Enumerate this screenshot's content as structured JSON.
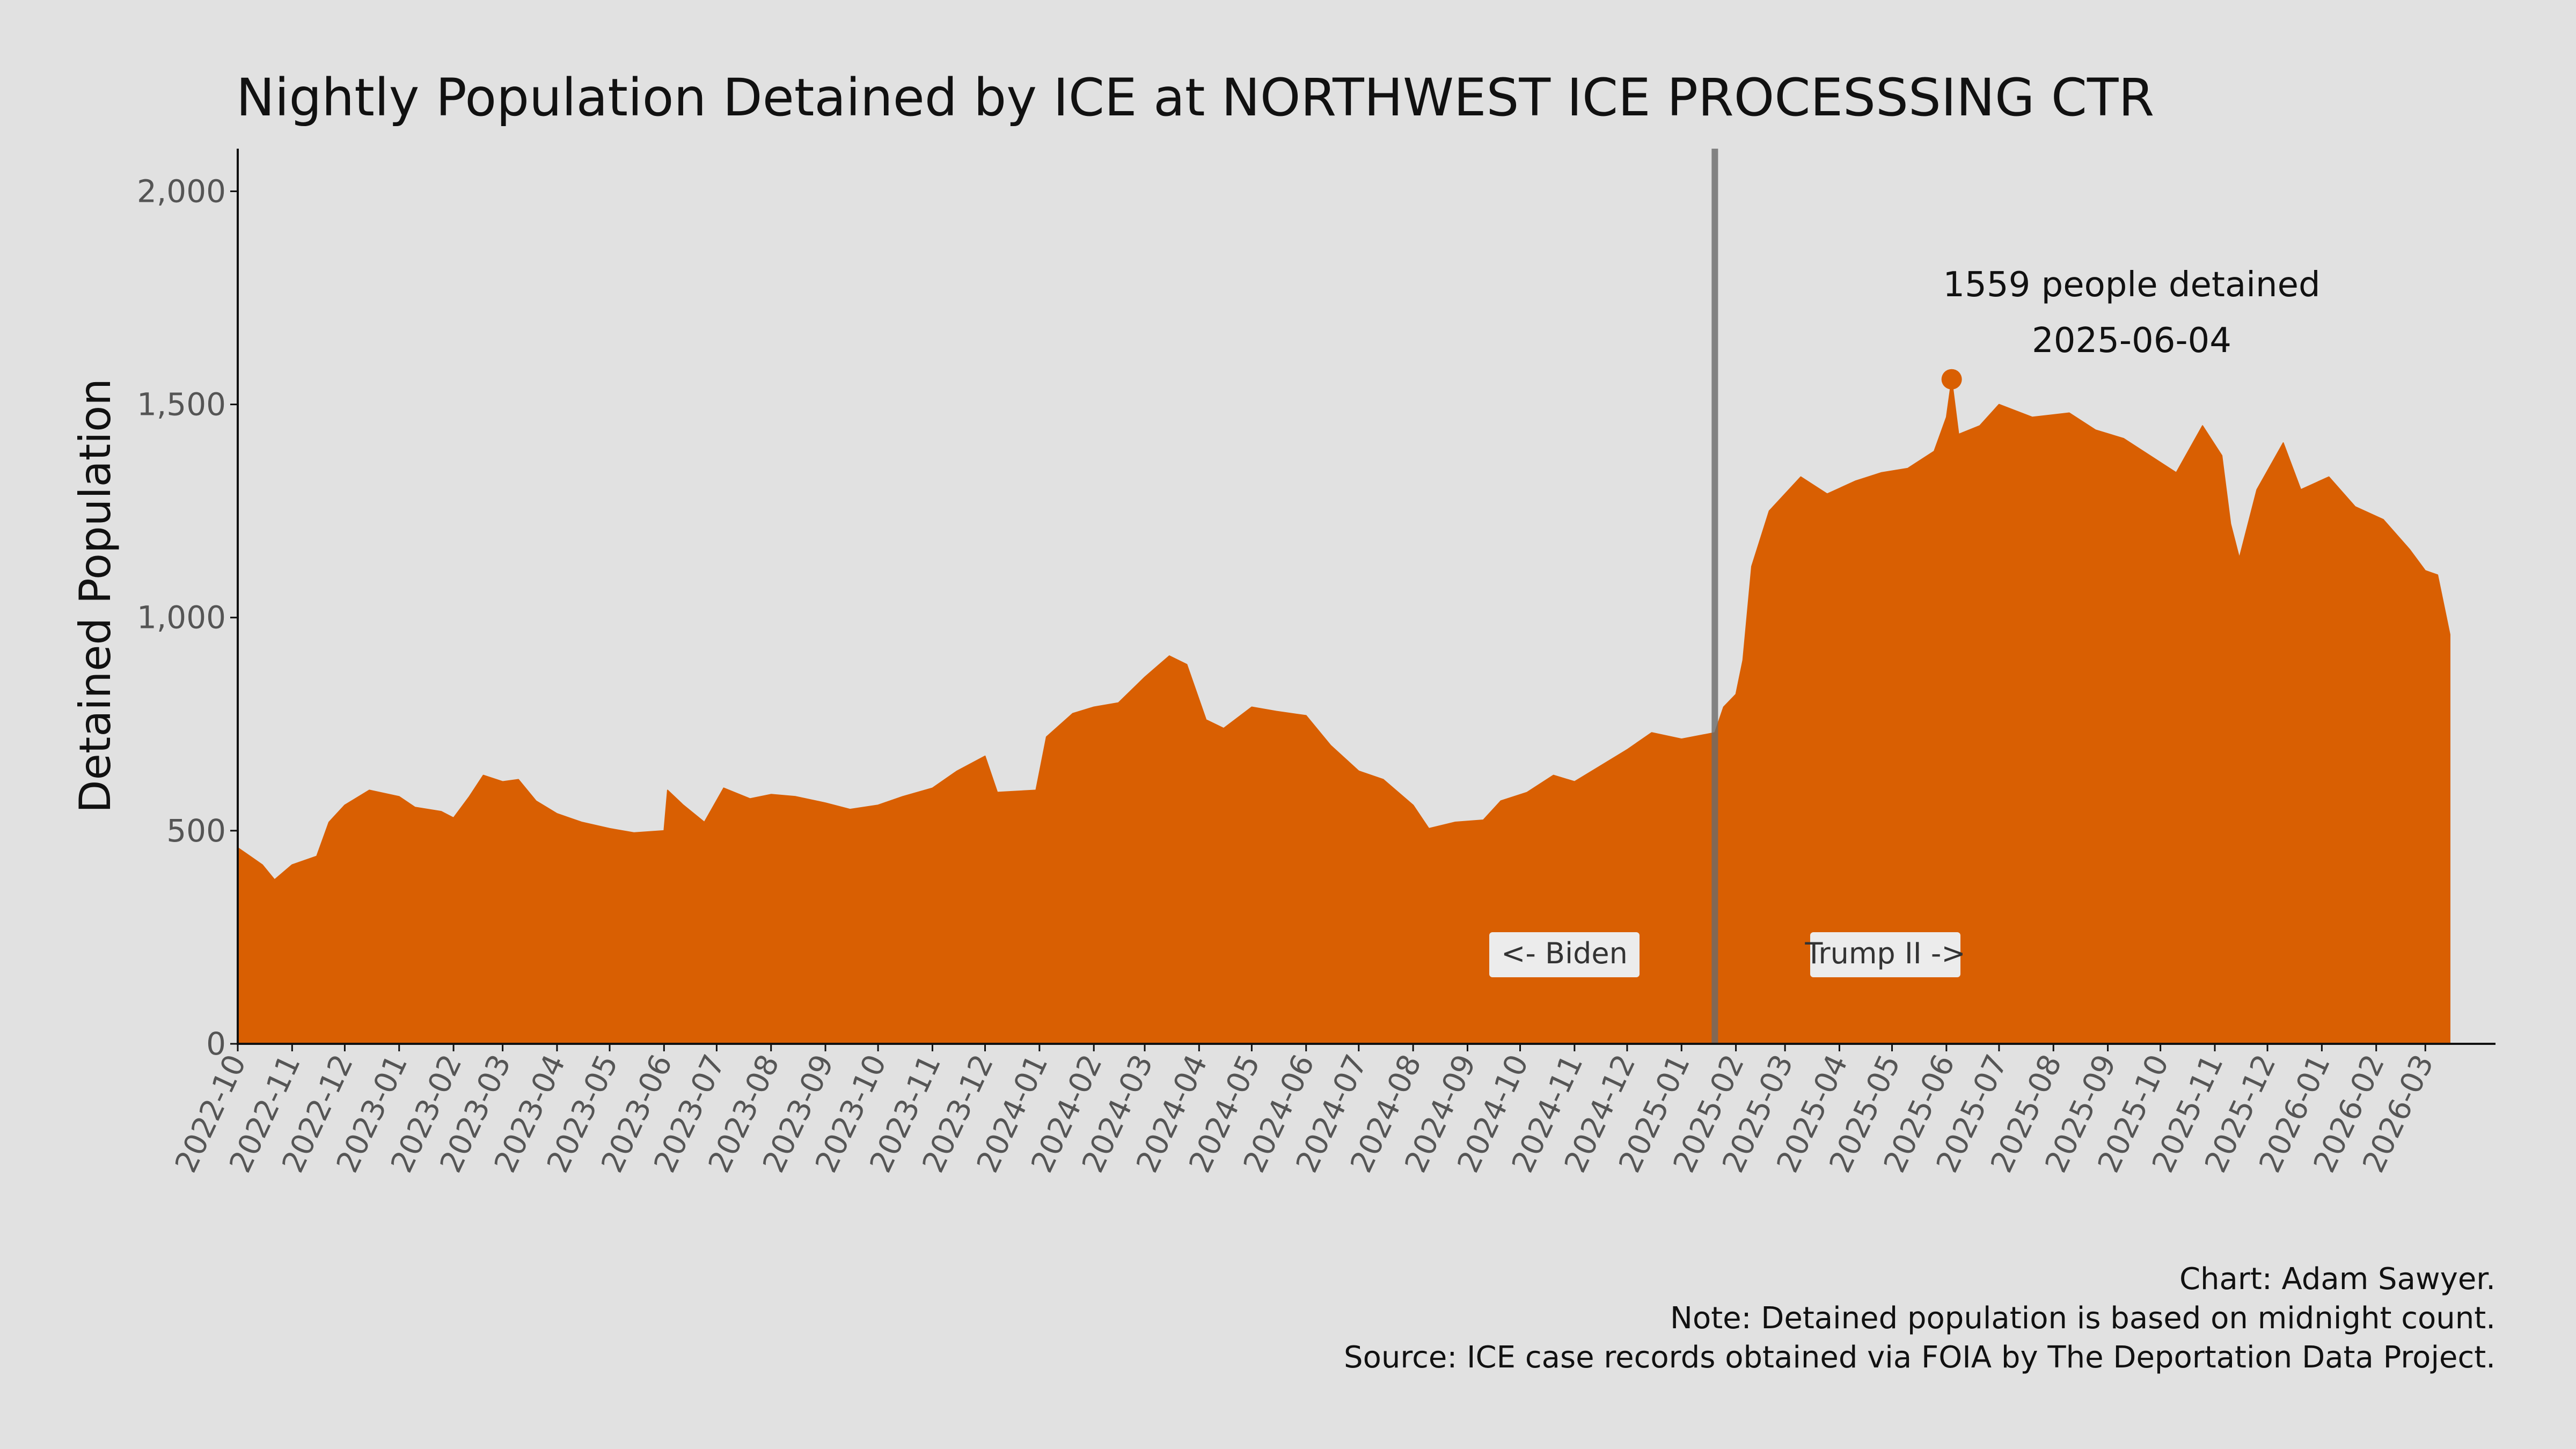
{
  "colors": {
    "background": "#e1e1e1",
    "area": "#d95f02",
    "divider": "#6a6a6a",
    "axis": "#111111",
    "tick_text": "#555555",
    "label_box": "#ececec"
  },
  "caption": {
    "line1": "Chart: Adam Sawyer.",
    "line2": "Note: Detained population is based on midnight count.",
    "line3": "Source: ICE case records obtained via FOIA by The Deportation Data Project."
  },
  "chart_data": {
    "type": "area",
    "title": "Nightly Population Detained by ICE at NORTHWEST ICE PROCESSSING CTR",
    "xlabel": "",
    "ylabel": "Detained Population",
    "ylim": [
      0,
      2100
    ],
    "xlim": [
      "2022-10-01",
      "2026-04-10"
    ],
    "yticks": [
      0,
      500,
      1000,
      1500,
      2000
    ],
    "ytick_labels": [
      "0",
      "500",
      "1,000",
      "1,500",
      "2,000"
    ],
    "xtick_labels": [
      "2022-10",
      "2022-11",
      "2022-12",
      "2023-01",
      "2023-02",
      "2023-03",
      "2023-04",
      "2023-05",
      "2023-06",
      "2023-07",
      "2023-08",
      "2023-09",
      "2023-10",
      "2023-11",
      "2023-12",
      "2024-01",
      "2024-02",
      "2024-03",
      "2024-04",
      "2024-05",
      "2024-06",
      "2024-07",
      "2024-08",
      "2024-09",
      "2024-10",
      "2024-11",
      "2024-12",
      "2025-01",
      "2025-02",
      "2025-03",
      "2025-04",
      "2025-05",
      "2025-06",
      "2025-07",
      "2025-08",
      "2025-09",
      "2025-10",
      "2025-11",
      "2025-12",
      "2026-01",
      "2026-02",
      "2026-03"
    ],
    "grid": false,
    "series": [
      {
        "values": [
          {
            "x": "2022-10-01",
            "y": 460
          },
          {
            "x": "2022-10-08",
            "y": 440
          },
          {
            "x": "2022-10-15",
            "y": 420
          },
          {
            "x": "2022-10-22",
            "y": 385
          },
          {
            "x": "2022-11-01",
            "y": 420
          },
          {
            "x": "2022-11-15",
            "y": 440
          },
          {
            "x": "2022-11-22",
            "y": 520
          },
          {
            "x": "2022-12-01",
            "y": 560
          },
          {
            "x": "2022-12-15",
            "y": 595
          },
          {
            "x": "2023-01-01",
            "y": 580
          },
          {
            "x": "2023-01-10",
            "y": 555
          },
          {
            "x": "2023-01-25",
            "y": 545
          },
          {
            "x": "2023-02-01",
            "y": 530
          },
          {
            "x": "2023-02-10",
            "y": 580
          },
          {
            "x": "2023-02-18",
            "y": 630
          },
          {
            "x": "2023-03-01",
            "y": 615
          },
          {
            "x": "2023-03-10",
            "y": 620
          },
          {
            "x": "2023-03-20",
            "y": 570
          },
          {
            "x": "2023-04-01",
            "y": 540
          },
          {
            "x": "2023-04-15",
            "y": 520
          },
          {
            "x": "2023-05-01",
            "y": 505
          },
          {
            "x": "2023-05-15",
            "y": 495
          },
          {
            "x": "2023-06-01",
            "y": 500
          },
          {
            "x": "2023-06-03",
            "y": 595
          },
          {
            "x": "2023-06-12",
            "y": 560
          },
          {
            "x": "2023-06-24",
            "y": 520
          },
          {
            "x": "2023-07-05",
            "y": 600
          },
          {
            "x": "2023-07-20",
            "y": 575
          },
          {
            "x": "2023-08-01",
            "y": 585
          },
          {
            "x": "2023-08-15",
            "y": 580
          },
          {
            "x": "2023-09-01",
            "y": 565
          },
          {
            "x": "2023-09-15",
            "y": 550
          },
          {
            "x": "2023-10-01",
            "y": 560
          },
          {
            "x": "2023-10-15",
            "y": 580
          },
          {
            "x": "2023-11-01",
            "y": 600
          },
          {
            "x": "2023-11-15",
            "y": 640
          },
          {
            "x": "2023-12-01",
            "y": 675
          },
          {
            "x": "2023-12-08",
            "y": 590
          },
          {
            "x": "2023-12-30",
            "y": 595
          },
          {
            "x": "2024-01-05",
            "y": 720
          },
          {
            "x": "2024-01-20",
            "y": 775
          },
          {
            "x": "2024-02-01",
            "y": 790
          },
          {
            "x": "2024-02-15",
            "y": 800
          },
          {
            "x": "2024-03-01",
            "y": 860
          },
          {
            "x": "2024-03-15",
            "y": 910
          },
          {
            "x": "2024-03-25",
            "y": 890
          },
          {
            "x": "2024-04-05",
            "y": 760
          },
          {
            "x": "2024-04-15",
            "y": 740
          },
          {
            "x": "2024-05-01",
            "y": 790
          },
          {
            "x": "2024-05-15",
            "y": 780
          },
          {
            "x": "2024-06-01",
            "y": 770
          },
          {
            "x": "2024-06-15",
            "y": 700
          },
          {
            "x": "2024-07-01",
            "y": 640
          },
          {
            "x": "2024-07-15",
            "y": 620
          },
          {
            "x": "2024-08-01",
            "y": 560
          },
          {
            "x": "2024-08-10",
            "y": 505
          },
          {
            "x": "2024-08-25",
            "y": 520
          },
          {
            "x": "2024-09-10",
            "y": 525
          },
          {
            "x": "2024-09-20",
            "y": 570
          },
          {
            "x": "2024-10-05",
            "y": 590
          },
          {
            "x": "2024-10-20",
            "y": 630
          },
          {
            "x": "2024-11-01",
            "y": 615
          },
          {
            "x": "2024-11-15",
            "y": 650
          },
          {
            "x": "2024-12-01",
            "y": 690
          },
          {
            "x": "2024-12-15",
            "y": 730
          },
          {
            "x": "2025-01-01",
            "y": 715
          },
          {
            "x": "2025-01-20",
            "y": 730
          },
          {
            "x": "2025-01-25",
            "y": 790
          },
          {
            "x": "2025-02-01",
            "y": 820
          },
          {
            "x": "2025-02-05",
            "y": 900
          },
          {
            "x": "2025-02-10",
            "y": 1120
          },
          {
            "x": "2025-02-20",
            "y": 1250
          },
          {
            "x": "2025-03-10",
            "y": 1330
          },
          {
            "x": "2025-03-25",
            "y": 1290
          },
          {
            "x": "2025-04-10",
            "y": 1320
          },
          {
            "x": "2025-04-25",
            "y": 1340
          },
          {
            "x": "2025-05-10",
            "y": 1350
          },
          {
            "x": "2025-05-25",
            "y": 1390
          },
          {
            "x": "2025-06-01",
            "y": 1470
          },
          {
            "x": "2025-06-04",
            "y": 1559
          },
          {
            "x": "2025-06-08",
            "y": 1430
          },
          {
            "x": "2025-06-20",
            "y": 1450
          },
          {
            "x": "2025-07-01",
            "y": 1500
          },
          {
            "x": "2025-07-20",
            "y": 1470
          },
          {
            "x": "2025-08-10",
            "y": 1480
          },
          {
            "x": "2025-08-25",
            "y": 1440
          },
          {
            "x": "2025-09-10",
            "y": 1420
          },
          {
            "x": "2025-09-25",
            "y": 1380
          },
          {
            "x": "2025-10-10",
            "y": 1340
          },
          {
            "x": "2025-10-25",
            "y": 1450
          },
          {
            "x": "2025-11-05",
            "y": 1380
          },
          {
            "x": "2025-11-10",
            "y": 1220
          },
          {
            "x": "2025-11-15",
            "y": 1140
          },
          {
            "x": "2025-11-25",
            "y": 1300
          },
          {
            "x": "2025-12-10",
            "y": 1410
          },
          {
            "x": "2025-12-20",
            "y": 1300
          },
          {
            "x": "2026-01-05",
            "y": 1330
          },
          {
            "x": "2026-01-20",
            "y": 1260
          },
          {
            "x": "2026-02-05",
            "y": 1230
          },
          {
            "x": "2026-02-20",
            "y": 1160
          },
          {
            "x": "2026-03-01",
            "y": 1110
          },
          {
            "x": "2026-03-08",
            "y": 1100
          },
          {
            "x": "2026-03-13",
            "y": 1000
          },
          {
            "x": "2026-03-15",
            "y": 960
          }
        ]
      }
    ],
    "peak": {
      "x": "2025-06-04",
      "y": 1559
    },
    "annotations": {
      "peak_line1": "1559 people detained",
      "peak_line2": "2025-06-04",
      "divider_date": "2025-01-20",
      "left_label": "<- Biden",
      "right_label": "Trump II ->"
    }
  }
}
